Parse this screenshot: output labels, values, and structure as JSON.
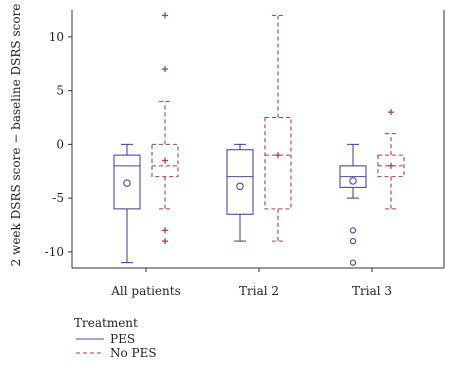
{
  "chart_data": {
    "type": "boxplot",
    "ylabel": "2 week DSRS score − baseline DSRS score",
    "ylim": [
      -11.5,
      12.5
    ],
    "yticks": [
      10,
      5,
      0,
      -5,
      -10
    ],
    "categories": [
      "All patients",
      "Trial 2",
      "Trial 3"
    ],
    "series": [
      {
        "name": "PES",
        "color": "#4a4a9a",
        "line_style": "solid",
        "boxes": [
          {
            "category": "All patients",
            "whisker_low": -11,
            "q1": -6,
            "median": -2,
            "q3": -1,
            "whisker_high": 0,
            "mean": -3.6,
            "outliers": []
          },
          {
            "category": "Trial 2",
            "whisker_low": -9,
            "q1": -6.5,
            "median": -3,
            "q3": -0.5,
            "whisker_high": 0,
            "mean": -3.9,
            "outliers": []
          },
          {
            "category": "Trial 3",
            "whisker_low": -5,
            "q1": -4,
            "median": -3,
            "q3": -2,
            "whisker_high": 0,
            "mean": -3.4,
            "outliers": [
              -8,
              -9,
              -11
            ]
          }
        ]
      },
      {
        "name": "No PES",
        "color": "#a0404a",
        "line_style": "dashed",
        "boxes": [
          {
            "category": "All patients",
            "whisker_low": -6,
            "q1": -3,
            "median": -2,
            "q3": 0,
            "whisker_high": 4,
            "mean": -1.5,
            "outliers": [
              7,
              12,
              -8,
              -9
            ]
          },
          {
            "category": "Trial 2",
            "whisker_low": -9,
            "q1": -6,
            "median": -1,
            "q3": 2.5,
            "whisker_high": 12,
            "mean": -1,
            "outliers": []
          },
          {
            "category": "Trial 3",
            "whisker_low": -6,
            "q1": -3,
            "median": -2,
            "q3": -1,
            "whisker_high": 1,
            "mean": -2,
            "outliers": [
              3
            ]
          }
        ]
      }
    ],
    "legend": {
      "title": "Treatment",
      "placement": "bottom-left",
      "items": [
        {
          "label": "PES",
          "line_style": "solid"
        },
        {
          "label": "No PES",
          "line_style": "dashed"
        }
      ]
    },
    "grid": false
  }
}
